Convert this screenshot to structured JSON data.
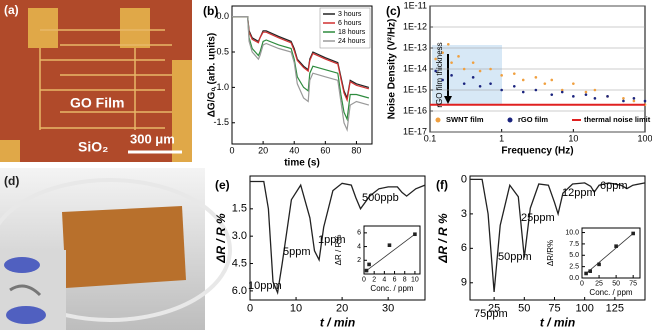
{
  "panel_a": {
    "label": "(a)",
    "film": "GO Film",
    "substrate": "SiO₂",
    "scale_bar": "300 μm"
  },
  "panel_d": {
    "label": "(d)"
  },
  "chart_data": [
    {
      "type": "line",
      "title": "(b)",
      "xlabel": "time (s)",
      "ylabel": "ΔG/G₀ (arb. units)",
      "x": [
        0,
        10,
        11,
        13,
        17,
        18,
        20,
        22,
        30,
        38,
        40,
        42,
        46,
        49,
        50,
        52,
        60,
        68,
        70,
        72,
        74,
        76,
        80,
        88
      ],
      "series": [
        {
          "name": "3 hours",
          "color": "#222222",
          "values": [
            0,
            0,
            -0.2,
            -0.3,
            -0.35,
            -0.3,
            -0.2,
            -0.2,
            -0.28,
            -0.35,
            -0.45,
            -0.6,
            -0.7,
            -0.75,
            -0.6,
            -0.5,
            -0.58,
            -0.65,
            -0.85,
            -1.05,
            -1.15,
            -0.9,
            -0.95,
            -1.0
          ]
        },
        {
          "name": "6 hours",
          "color": "#d03030",
          "values": [
            0,
            0,
            -0.22,
            -0.32,
            -0.37,
            -0.3,
            -0.22,
            -0.22,
            -0.3,
            -0.37,
            -0.48,
            -0.62,
            -0.72,
            -0.77,
            -0.62,
            -0.52,
            -0.6,
            -0.67,
            -0.88,
            -1.08,
            -1.18,
            -0.92,
            -0.97,
            -1.02
          ]
        },
        {
          "name": "18 hours",
          "color": "#2e8b3e",
          "values": [
            0,
            0,
            -0.3,
            -0.45,
            -0.55,
            -0.5,
            -0.35,
            -0.33,
            -0.4,
            -0.45,
            -0.6,
            -0.85,
            -1.0,
            -1.05,
            -0.8,
            -0.7,
            -0.75,
            -0.8,
            -1.1,
            -1.35,
            -1.45,
            -1.1,
            -1.1,
            -1.15
          ]
        },
        {
          "name": "24 hours",
          "color": "#9a9a9a",
          "values": [
            0,
            0,
            -0.35,
            -0.5,
            -0.6,
            -0.55,
            -0.4,
            -0.38,
            -0.45,
            -0.5,
            -0.65,
            -0.95,
            -1.15,
            -1.2,
            -0.9,
            -0.8,
            -0.85,
            -0.9,
            -1.2,
            -1.5,
            -1.6,
            -1.25,
            -1.2,
            -1.25
          ]
        }
      ],
      "xlim": [
        0,
        90
      ],
      "ylim": [
        -1.8,
        0.15
      ],
      "xticks": [
        0,
        20,
        40,
        60,
        80
      ],
      "yticks": [
        {
          "value": 0,
          "label": "0.0"
        },
        -0.5,
        {
          "value": -1,
          "label": "-1.0"
        },
        -1.5
      ],
      "legend": "upper right"
    },
    {
      "type": "scatter",
      "title": "(c)",
      "xlabel": "Frequency (Hz)",
      "ylabel": "Noise Density (V²/Hz)",
      "xlog": true,
      "ylog": true,
      "grid": true,
      "series": [
        {
          "name": "SWNT film",
          "color": "#f0a040",
          "x": [
            0.12,
            0.15,
            0.18,
            0.2,
            0.25,
            0.3,
            0.4,
            0.5,
            0.7,
            1,
            1.5,
            2,
            3,
            4,
            5,
            7,
            10,
            15,
            20,
            30,
            50,
            70,
            100
          ],
          "values": [
            3e-14,
            6e-14,
            1.5e-13,
            2e-14,
            4e-14,
            1e-14,
            2e-14,
            8e-15,
            1e-14,
            5e-15,
            6e-15,
            3e-15,
            4e-15,
            2e-15,
            3e-15,
            1e-15,
            2e-15,
            8e-16,
            1e-15,
            5e-16,
            4e-16,
            3e-16,
            2e-16
          ]
        },
        {
          "name": "rGO film",
          "color": "#1a237e",
          "x": [
            0.12,
            0.15,
            0.2,
            0.3,
            0.4,
            0.5,
            0.7,
            1,
            1.5,
            2,
            3,
            5,
            7,
            10,
            15,
            20,
            30,
            50,
            70,
            100
          ],
          "values": [
            8e-15,
            3e-15,
            5e-15,
            2e-15,
            4e-15,
            1.5e-15,
            2e-15,
            1e-15,
            1.5e-15,
            8e-16,
            1e-15,
            6e-16,
            8e-16,
            5e-16,
            6e-16,
            4e-16,
            5e-16,
            3e-16,
            4e-16,
            3e-16
          ]
        },
        {
          "name": "thermal noise limit",
          "color": "#e02020",
          "mode": "line",
          "x": [
            0.1,
            100
          ],
          "values": [
            2e-16,
            2e-16
          ]
        }
      ],
      "xlim": [
        0.1,
        100
      ],
      "ylim": [
        1e-17,
        1e-11
      ],
      "xticks": [
        0.1,
        1,
        10,
        100
      ],
      "yticks": [
        {
          "value": 1e-17,
          "label": "1E-17"
        },
        {
          "value": 1e-16,
          "label": "1E-16"
        },
        {
          "value": 1e-15,
          "label": "1E-15"
        },
        {
          "value": 1e-14,
          "label": "1E-14"
        },
        {
          "value": 1e-13,
          "label": "1E-13"
        },
        {
          "value": 1e-12,
          "label": "1E-12"
        },
        {
          "value": 1e-11,
          "label": "1E-11"
        }
      ],
      "annotations": [
        "rGO film thickness"
      ],
      "legend": "lower center"
    },
    {
      "type": "line",
      "title": "(e)",
      "xlabel": "t / min",
      "ylabel": "ΔR / R %",
      "yreverse": true,
      "color": "#222222",
      "x": [
        0,
        3,
        4,
        5,
        6,
        7,
        9,
        11,
        13,
        14,
        15,
        16,
        18,
        20,
        22,
        23,
        24,
        26,
        28,
        30,
        32,
        33,
        34,
        36,
        38
      ],
      "values": [
        0,
        0,
        1.5,
        5.5,
        6.1,
        4.5,
        1.0,
        0.2,
        2.0,
        3.8,
        4.3,
        2.5,
        0.5,
        0.1,
        0.2,
        0.9,
        1.5,
        0.8,
        0.4,
        0.3,
        0.3,
        0.6,
        0.8,
        0.4,
        0.2
      ],
      "xlim": [
        0,
        38
      ],
      "ylim": [
        -0.3,
        6.5
      ],
      "xticks": [
        0,
        10,
        20,
        30
      ],
      "yticks": [
        1.5,
        {
          "value": 3,
          "label": "3.0"
        },
        4.5,
        {
          "value": 6,
          "label": "6.0"
        }
      ],
      "annotations": [
        "10ppm",
        "5ppm",
        "1ppm",
        "500ppb"
      ],
      "inset": {
        "type": "scatter",
        "fit": true,
        "color": "#222222",
        "xlabel": "Conc. / ppm",
        "ylabel": "ΔR / R%",
        "x": [
          0.5,
          1,
          5,
          10
        ],
        "values": [
          0.5,
          1.4,
          4.2,
          5.8
        ],
        "xlim": [
          0,
          11
        ],
        "ylim": [
          0,
          7
        ],
        "xticks": [
          0,
          2,
          4,
          6,
          8,
          10
        ],
        "yticks": [
          2,
          4,
          6
        ]
      }
    },
    {
      "type": "line",
      "title": "(f)",
      "xlabel": "t / min",
      "ylabel": "ΔR / R %",
      "yreverse": true,
      "color": "#222222",
      "x": [
        5,
        15,
        20,
        25,
        30,
        38,
        45,
        50,
        55,
        62,
        70,
        75,
        78,
        82,
        90,
        100,
        105,
        108,
        112,
        120,
        130,
        135,
        140,
        150
      ],
      "values": [
        0,
        0,
        3,
        9.8,
        4,
        0.5,
        1.5,
        6.8,
        2.5,
        0.4,
        0.5,
        2,
        3,
        1.2,
        0.4,
        0.3,
        0.6,
        1.1,
        0.5,
        0.3,
        0.5,
        0.8,
        0.5,
        0.3
      ],
      "xlim": [
        5,
        150
      ],
      "ylim": [
        -0.3,
        10.5
      ],
      "xticks": [
        25,
        50,
        75,
        100,
        125
      ],
      "yticks": [
        0,
        3,
        6,
        9
      ],
      "annotations": [
        "75ppm",
        "50ppm",
        "25ppm",
        "12ppm",
        "6ppm"
      ],
      "inset": {
        "type": "scatter",
        "fit": true,
        "color": "#222222",
        "xlabel": "Conc. / ppm",
        "ylabel": "ΔR/R%",
        "x": [
          6,
          12,
          25,
          50,
          75
        ],
        "values": [
          1,
          1.5,
          3,
          7,
          9.8
        ],
        "xlim": [
          0,
          85
        ],
        "ylim": [
          0,
          11
        ],
        "xticks": [
          0,
          25,
          50,
          75
        ],
        "yticks": [
          {
            "value": 0,
            "label": "0.0"
          },
          2.5,
          {
            "value": 5,
            "label": "5.0"
          },
          7.5,
          {
            "value": 10,
            "label": "10.0"
          }
        ]
      }
    }
  ]
}
